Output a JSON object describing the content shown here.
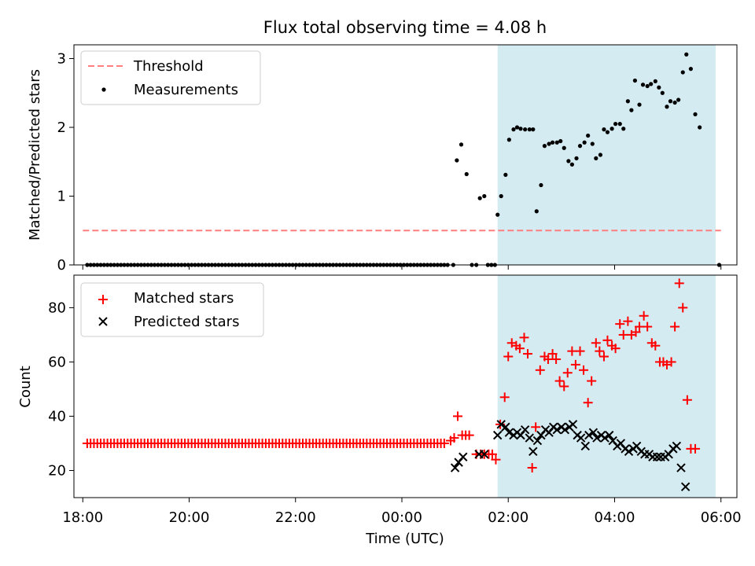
{
  "figure": {
    "title": "Flux total observing time = 4.08 h"
  },
  "chart_data": [
    {
      "type": "scatter",
      "panel": "top",
      "title": "Flux total observing time = 4.08 h",
      "xlabel": "",
      "ylabel": "Matched/Predicted stars",
      "xlim": [
        "17:50",
        "06:18"
      ],
      "ylim": [
        0,
        3.2
      ],
      "yticks": [
        0,
        1,
        2,
        3
      ],
      "xticks": [
        "18:00",
        "20:00",
        "22:00",
        "00:00",
        "02:00",
        "04:00",
        "06:00"
      ],
      "shaded_interval": {
        "start": "01:48",
        "end": "05:54",
        "color": "#add8e6"
      },
      "legend": {
        "position": "top-left",
        "entries": [
          "Threshold",
          "Measurements"
        ]
      },
      "threshold": {
        "name": "Threshold",
        "value": 0.5,
        "x_start": "18:00",
        "x_end": "06:00",
        "color": "#ff7f7f",
        "style": "dashed"
      },
      "series": [
        {
          "name": "Measurements",
          "color": "#000000",
          "zero_run": {
            "start": "18:05",
            "end": "00:55",
            "step_min": 3.8,
            "value": 0
          },
          "points": [
            [
              "00:58",
              0
            ],
            [
              "01:02",
              1.52
            ],
            [
              "01:07",
              1.75
            ],
            [
              "01:13",
              1.32
            ],
            [
              "01:19",
              0
            ],
            [
              "01:24",
              0
            ],
            [
              "01:28",
              0.97
            ],
            [
              "01:33",
              1.0
            ],
            [
              "01:37",
              0
            ],
            [
              "01:41",
              0
            ],
            [
              "01:45",
              0
            ],
            [
              "01:48",
              0.73
            ],
            [
              "01:52",
              1.0
            ],
            [
              "01:57",
              1.31
            ],
            [
              "02:01",
              1.82
            ],
            [
              "02:06",
              1.97
            ],
            [
              "02:10",
              2.0
            ],
            [
              "02:14",
              1.98
            ],
            [
              "02:19",
              1.97
            ],
            [
              "02:24",
              1.97
            ],
            [
              "02:28",
              1.97
            ],
            [
              "02:32",
              0.78
            ],
            [
              "02:37",
              1.16
            ],
            [
              "02:41",
              1.73
            ],
            [
              "02:46",
              1.76
            ],
            [
              "02:50",
              1.78
            ],
            [
              "02:55",
              1.78
            ],
            [
              "02:59",
              1.8
            ],
            [
              "03:03",
              1.7
            ],
            [
              "03:08",
              1.51
            ],
            [
              "03:12",
              1.46
            ],
            [
              "03:17",
              1.55
            ],
            [
              "03:21",
              1.73
            ],
            [
              "03:26",
              1.78
            ],
            [
              "03:30",
              1.88
            ],
            [
              "03:35",
              1.76
            ],
            [
              "03:39",
              1.55
            ],
            [
              "03:44",
              1.6
            ],
            [
              "03:48",
              1.97
            ],
            [
              "03:52",
              1.93
            ],
            [
              "03:57",
              1.98
            ],
            [
              "04:01",
              2.05
            ],
            [
              "04:06",
              2.05
            ],
            [
              "04:10",
              1.98
            ],
            [
              "04:15",
              2.38
            ],
            [
              "04:19",
              2.25
            ],
            [
              "04:23",
              2.68
            ],
            [
              "04:28",
              2.33
            ],
            [
              "04:32",
              2.62
            ],
            [
              "04:37",
              2.6
            ],
            [
              "04:41",
              2.63
            ],
            [
              "04:46",
              2.67
            ],
            [
              "04:50",
              2.58
            ],
            [
              "04:54",
              2.5
            ],
            [
              "04:59",
              2.3
            ],
            [
              "05:03",
              2.38
            ],
            [
              "05:08",
              2.36
            ],
            [
              "05:12",
              2.4
            ],
            [
              "05:17",
              2.8
            ],
            [
              "05:21",
              3.06
            ],
            [
              "05:26",
              2.85
            ],
            [
              "05:31",
              2.19
            ],
            [
              "05:36",
              2.0
            ],
            [
              "05:58",
              0
            ]
          ]
        }
      ]
    },
    {
      "type": "scatter",
      "panel": "bottom",
      "xlabel": "Time (UTC)",
      "ylabel": "Count",
      "xlim": [
        "17:50",
        "06:18"
      ],
      "ylim": [
        10,
        92
      ],
      "yticks": [
        20,
        40,
        60,
        80
      ],
      "xticks": [
        "18:00",
        "20:00",
        "22:00",
        "00:00",
        "02:00",
        "04:00",
        "06:00"
      ],
      "shaded_interval": {
        "start": "01:48",
        "end": "05:54",
        "color": "#add8e6"
      },
      "legend": {
        "position": "top-left",
        "entries": [
          "Matched stars",
          "Predicted stars"
        ]
      },
      "series": [
        {
          "name": "Matched stars",
          "marker": "plus",
          "color": "#ff0000",
          "constant_run": {
            "start": "18:05",
            "end": "00:50",
            "step_min": 3.8,
            "value": 30
          },
          "points": [
            [
              "00:55",
              31
            ],
            [
              "00:59",
              32
            ],
            [
              "01:03",
              40
            ],
            [
              "01:08",
              33
            ],
            [
              "01:12",
              33
            ],
            [
              "01:16",
              33
            ],
            [
              "01:24",
              26
            ],
            [
              "01:29",
              26
            ],
            [
              "01:33",
              26
            ],
            [
              "01:38",
              26
            ],
            [
              "01:42",
              26
            ],
            [
              "01:46",
              24
            ],
            [
              "01:51",
              37
            ],
            [
              "01:56",
              47
            ],
            [
              "02:00",
              62
            ],
            [
              "02:04",
              67
            ],
            [
              "02:09",
              66
            ],
            [
              "02:13",
              65
            ],
            [
              "02:18",
              69
            ],
            [
              "02:22",
              63
            ],
            [
              "02:27",
              21
            ],
            [
              "02:31",
              36
            ],
            [
              "02:36",
              57
            ],
            [
              "02:41",
              62
            ],
            [
              "02:45",
              61
            ],
            [
              "02:50",
              63
            ],
            [
              "02:54",
              61
            ],
            [
              "02:58",
              53
            ],
            [
              "03:03",
              51
            ],
            [
              "03:07",
              56
            ],
            [
              "03:12",
              64
            ],
            [
              "03:16",
              59
            ],
            [
              "03:21",
              64
            ],
            [
              "03:25",
              57
            ],
            [
              "03:30",
              45
            ],
            [
              "03:34",
              53
            ],
            [
              "03:39",
              67
            ],
            [
              "03:43",
              64
            ],
            [
              "03:48",
              62
            ],
            [
              "03:52",
              68
            ],
            [
              "03:57",
              66
            ],
            [
              "04:01",
              65
            ],
            [
              "04:06",
              74
            ],
            [
              "04:10",
              70
            ],
            [
              "04:15",
              75
            ],
            [
              "04:19",
              70
            ],
            [
              "04:24",
              71
            ],
            [
              "04:28",
              73
            ],
            [
              "04:33",
              77
            ],
            [
              "04:37",
              73
            ],
            [
              "04:42",
              67
            ],
            [
              "04:46",
              66
            ],
            [
              "04:51",
              60
            ],
            [
              "04:55",
              60
            ],
            [
              "04:59",
              59
            ],
            [
              "05:04",
              60
            ],
            [
              "05:08",
              73
            ],
            [
              "05:13",
              89
            ],
            [
              "05:17",
              80
            ],
            [
              "05:22",
              46
            ],
            [
              "05:26",
              28
            ],
            [
              "05:31",
              28
            ]
          ]
        },
        {
          "name": "Predicted stars",
          "marker": "x",
          "color": "#000000",
          "points": [
            [
              "01:00",
              21
            ],
            [
              "01:04",
              23
            ],
            [
              "01:09",
              25
            ],
            [
              "01:27",
              26
            ],
            [
              "01:33",
              26
            ],
            [
              "01:48",
              33
            ],
            [
              "01:52",
              37
            ],
            [
              "01:57",
              36
            ],
            [
              "02:01",
              34
            ],
            [
              "02:06",
              33
            ],
            [
              "02:10",
              34
            ],
            [
              "02:14",
              33
            ],
            [
              "02:19",
              35
            ],
            [
              "02:24",
              32
            ],
            [
              "02:28",
              27
            ],
            [
              "02:33",
              31
            ],
            [
              "02:37",
              33
            ],
            [
              "02:42",
              35
            ],
            [
              "02:46",
              34
            ],
            [
              "02:51",
              36
            ],
            [
              "02:55",
              35
            ],
            [
              "03:00",
              36
            ],
            [
              "03:04",
              35
            ],
            [
              "03:09",
              36
            ],
            [
              "03:13",
              37
            ],
            [
              "03:18",
              33
            ],
            [
              "03:22",
              32
            ],
            [
              "03:27",
              29
            ],
            [
              "03:31",
              33
            ],
            [
              "03:36",
              34
            ],
            [
              "03:40",
              32
            ],
            [
              "03:45",
              33
            ],
            [
              "03:49",
              32
            ],
            [
              "03:54",
              33
            ],
            [
              "03:58",
              31
            ],
            [
              "04:03",
              29
            ],
            [
              "04:07",
              30
            ],
            [
              "04:12",
              28
            ],
            [
              "04:16",
              27
            ],
            [
              "04:21",
              28
            ],
            [
              "04:25",
              29
            ],
            [
              "04:30",
              27
            ],
            [
              "04:34",
              26
            ],
            [
              "04:39",
              26
            ],
            [
              "04:43",
              25
            ],
            [
              "04:48",
              25
            ],
            [
              "04:52",
              25
            ],
            [
              "04:57",
              25
            ],
            [
              "05:01",
              26
            ],
            [
              "05:06",
              28
            ],
            [
              "05:10",
              29
            ],
            [
              "05:15",
              21
            ],
            [
              "05:20",
              14
            ]
          ]
        }
      ]
    }
  ]
}
